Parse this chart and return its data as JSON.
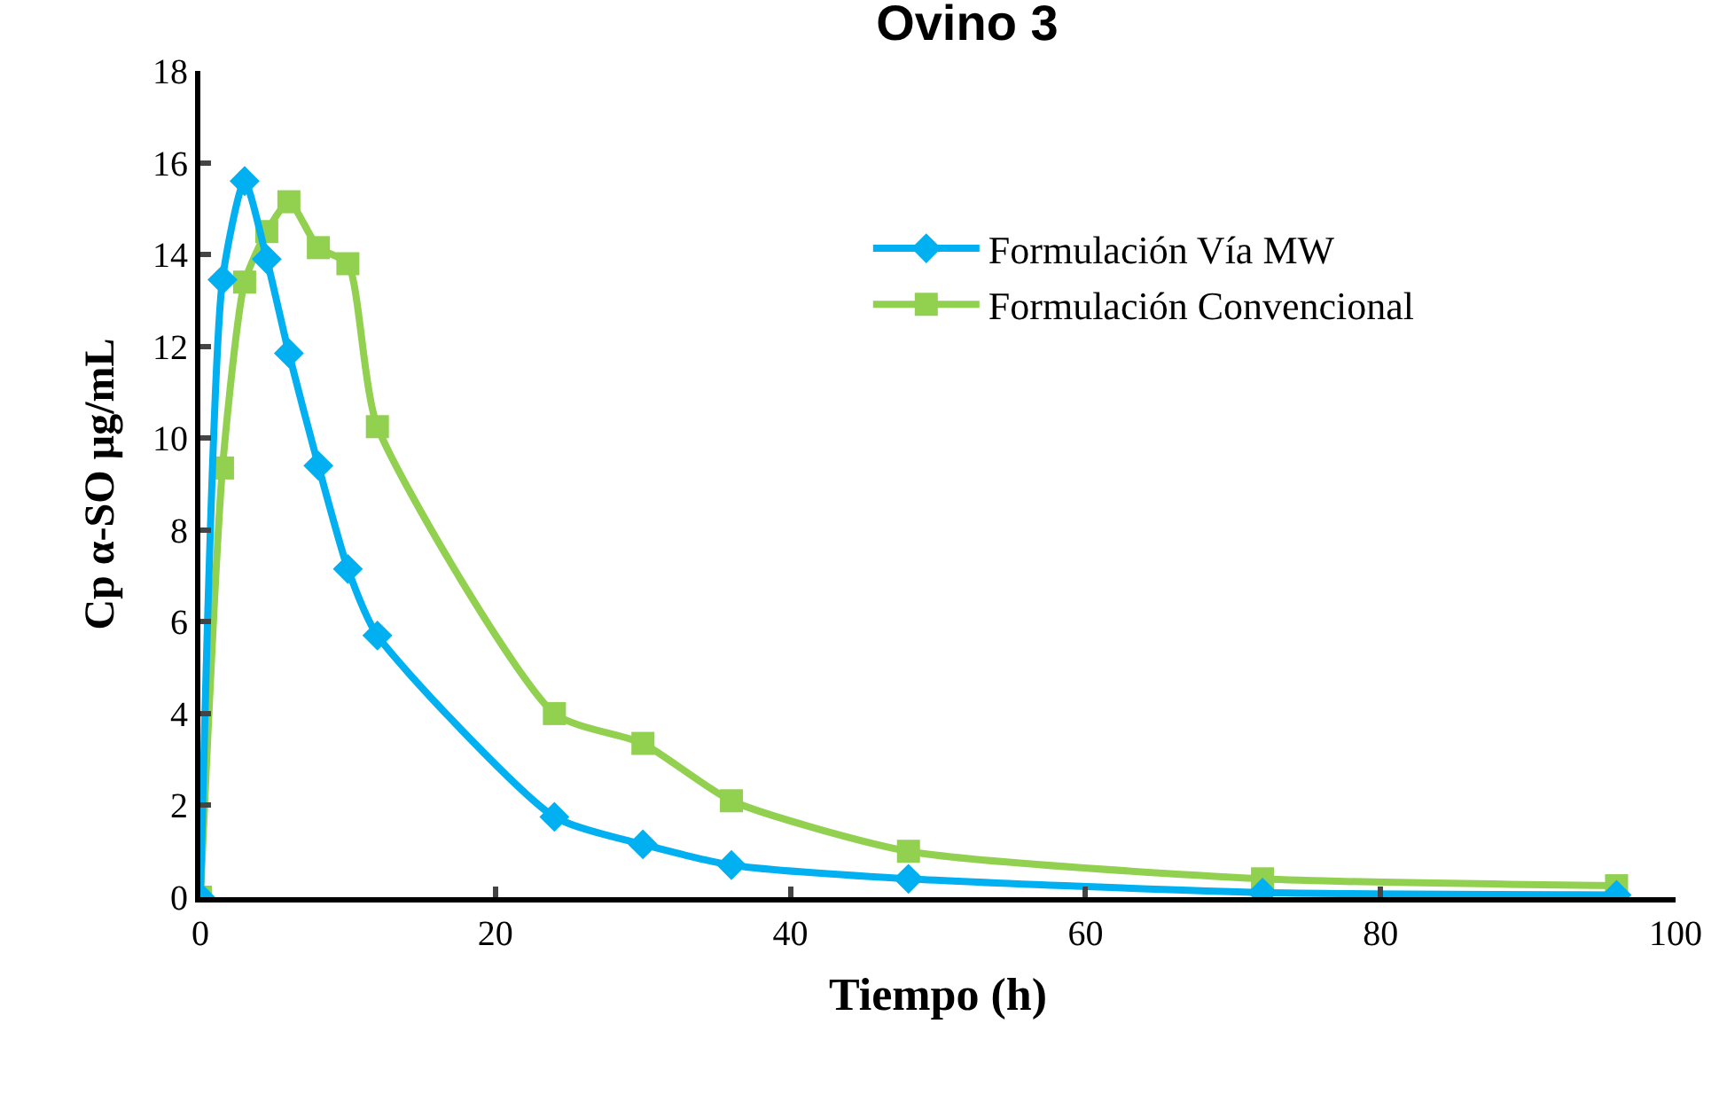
{
  "chart_data": {
    "type": "line",
    "title": "Ovino 3",
    "xlabel": "Tiempo (h)",
    "ylabel": "Cp α-SO µg/mL",
    "x": [
      0,
      1.5,
      3,
      4.5,
      6,
      8,
      10,
      12,
      24,
      30,
      36,
      48,
      72,
      96
    ],
    "series": [
      {
        "name": "Formulación Vía MW",
        "color": "#00b0f0",
        "marker": "diamond",
        "values": [
          0,
          13.45,
          15.6,
          13.9,
          11.85,
          9.4,
          7.15,
          5.7,
          1.75,
          1.15,
          0.7,
          0.4,
          0.1,
          0.05
        ]
      },
      {
        "name": "Formulación Convencional",
        "color": "#92d050",
        "marker": "square",
        "values": [
          0,
          9.35,
          13.4,
          14.5,
          15.15,
          14.15,
          13.8,
          10.25,
          4.0,
          3.35,
          2.1,
          1.0,
          0.4,
          0.25
        ]
      }
    ],
    "xlim": [
      0,
      100
    ],
    "xticks": [
      0,
      20,
      40,
      60,
      80,
      100
    ],
    "ylim": [
      0,
      18
    ],
    "yticks": [
      0,
      2,
      4,
      6,
      8,
      10,
      12,
      14,
      16,
      18
    ],
    "legend": "top right",
    "line_style": "solid"
  }
}
